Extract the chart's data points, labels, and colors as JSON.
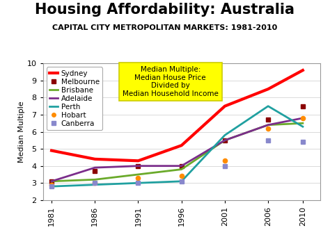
{
  "title": "Housing Affordability: Australia",
  "subtitle": "CAPITAL CITY METROPOLITAN MARKETS: 1981-2010",
  "ylabel": "Median Multiple",
  "annotation": "Median Multiple:\nMedian House Price\nDivided by\nMedian Household Income",
  "years": [
    1981,
    1986,
    1991,
    1996,
    2001,
    2006,
    2010
  ],
  "series": {
    "Sydney": [
      4.9,
      4.4,
      4.3,
      5.2,
      7.5,
      8.5,
      9.6
    ],
    "Melbourne": [
      3.1,
      3.7,
      4.0,
      4.0,
      5.5,
      6.7,
      7.5
    ],
    "Brisbane": [
      3.1,
      3.2,
      3.5,
      3.8,
      5.5,
      6.4,
      6.5
    ],
    "Adelaide": [
      3.1,
      3.9,
      4.0,
      4.0,
      5.5,
      6.4,
      6.8
    ],
    "Perth": [
      2.8,
      2.9,
      3.0,
      3.1,
      5.8,
      7.5,
      6.3
    ],
    "Hobart": [
      2.9,
      3.0,
      3.3,
      3.4,
      4.3,
      6.2,
      6.8
    ],
    "Canberra": [
      2.8,
      3.0,
      3.0,
      3.1,
      4.0,
      5.5,
      5.4
    ]
  },
  "colors": {
    "Sydney": "#FF0000",
    "Melbourne": "#8B0000",
    "Brisbane": "#6AAA2A",
    "Adelaide": "#7B2D8B",
    "Perth": "#20A0A0",
    "Hobart": "#FF8C00",
    "Canberra": "#8888CC"
  },
  "line_types": {
    "Sydney": "solid",
    "Melbourne": "dotted_square",
    "Brisbane": "solid",
    "Adelaide": "solid",
    "Perth": "solid",
    "Hobart": "dotted_circle",
    "Canberra": "dotted_square"
  },
  "linewidths": {
    "Sydney": 3.0,
    "Melbourne": 2.0,
    "Brisbane": 2.0,
    "Adelaide": 2.0,
    "Perth": 2.0,
    "Hobart": 2.0,
    "Canberra": 2.0
  },
  "ylim": [
    2,
    10
  ],
  "yticks": [
    2,
    3,
    4,
    5,
    6,
    7,
    8,
    9,
    10
  ],
  "xlim": [
    1980,
    2012
  ],
  "background_color": "#FFFFFF",
  "annotation_box_color": "#FFFF00",
  "annotation_box_edgecolor": "#CCCC00",
  "title_fontsize": 15,
  "subtitle_fontsize": 8,
  "ylabel_fontsize": 8,
  "tick_fontsize": 8,
  "legend_fontsize": 7.5,
  "annotation_fontsize": 7.5
}
